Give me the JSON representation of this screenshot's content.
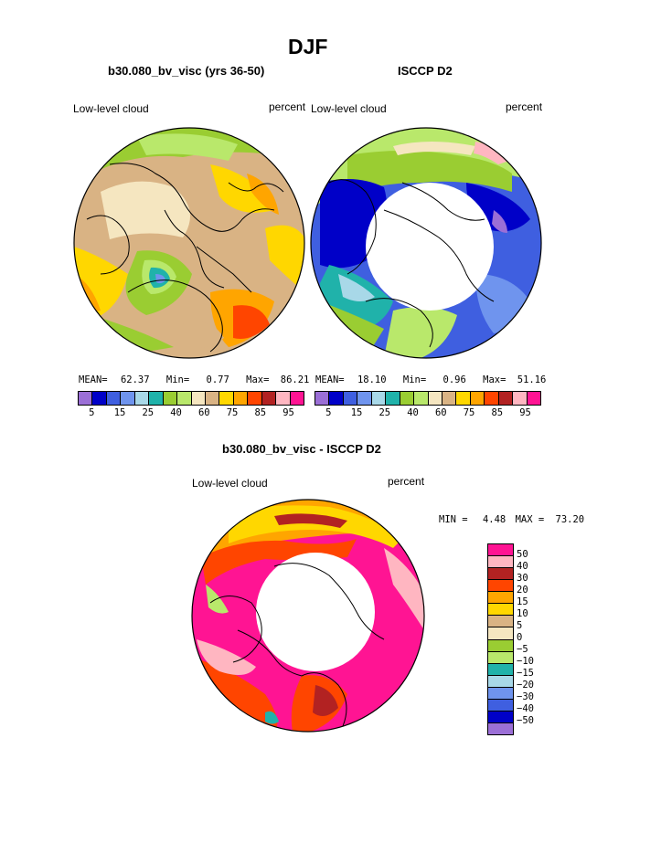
{
  "figure": {
    "title": "DJF",
    "subtitle_left": "b30.080_bv_visc (yrs 36-50)",
    "subtitle_right": "ISCCP D2",
    "subtitle_diff": "b30.080_bv_visc - ISCCP D2"
  },
  "panels": {
    "model": {
      "variable": "Low-level cloud",
      "units": "percent",
      "mean_label": "MEAN=",
      "mean": "62.37",
      "min_label": "Min=",
      "min": "0.77",
      "max_label": "Max=",
      "max": "86.21"
    },
    "obs": {
      "variable": "Low-level cloud",
      "units": "percent",
      "mean_label": "MEAN=",
      "mean": "18.10",
      "min_label": "Min=",
      "min": "0.96",
      "max_label": "Max=",
      "max": "51.16"
    },
    "diff": {
      "variable": "Low-level cloud",
      "units": "percent",
      "min_label": "MIN =",
      "min": "4.48",
      "max_label": "MAX =",
      "max": "73.20"
    }
  },
  "colorbar_main": {
    "colors": [
      "#9b6fd6",
      "#0000c8",
      "#3f5fe0",
      "#6f94ee",
      "#a8d8e8",
      "#20b2aa",
      "#9acd32",
      "#b9e86b",
      "#f5e6c0",
      "#d9b384",
      "#ffd700",
      "#ffa500",
      "#ff4500",
      "#b22222",
      "#ffb6c1",
      "#ff1493"
    ],
    "ticks": [
      "5",
      "15",
      "25",
      "40",
      "60",
      "75",
      "85",
      "95"
    ]
  },
  "colorbar_diff": {
    "colors": [
      "#ff1493",
      "#ffb6c1",
      "#b22222",
      "#ff4500",
      "#ffa500",
      "#ffd700",
      "#d9b384",
      "#f5e6c0",
      "#9acd32",
      "#b9e86b",
      "#20b2aa",
      "#a8d8e8",
      "#6f94ee",
      "#3f5fe0",
      "#0000c8",
      "#9b6fd6"
    ],
    "ticks": [
      "50",
      "40",
      "30",
      "20",
      "15",
      "10",
      "5",
      "0",
      "−5",
      "−10",
      "−15",
      "−20",
      "−30",
      "−40",
      "−50"
    ]
  },
  "map_colors": {
    "outline": "#000000",
    "land_cap": "#ffffff"
  }
}
